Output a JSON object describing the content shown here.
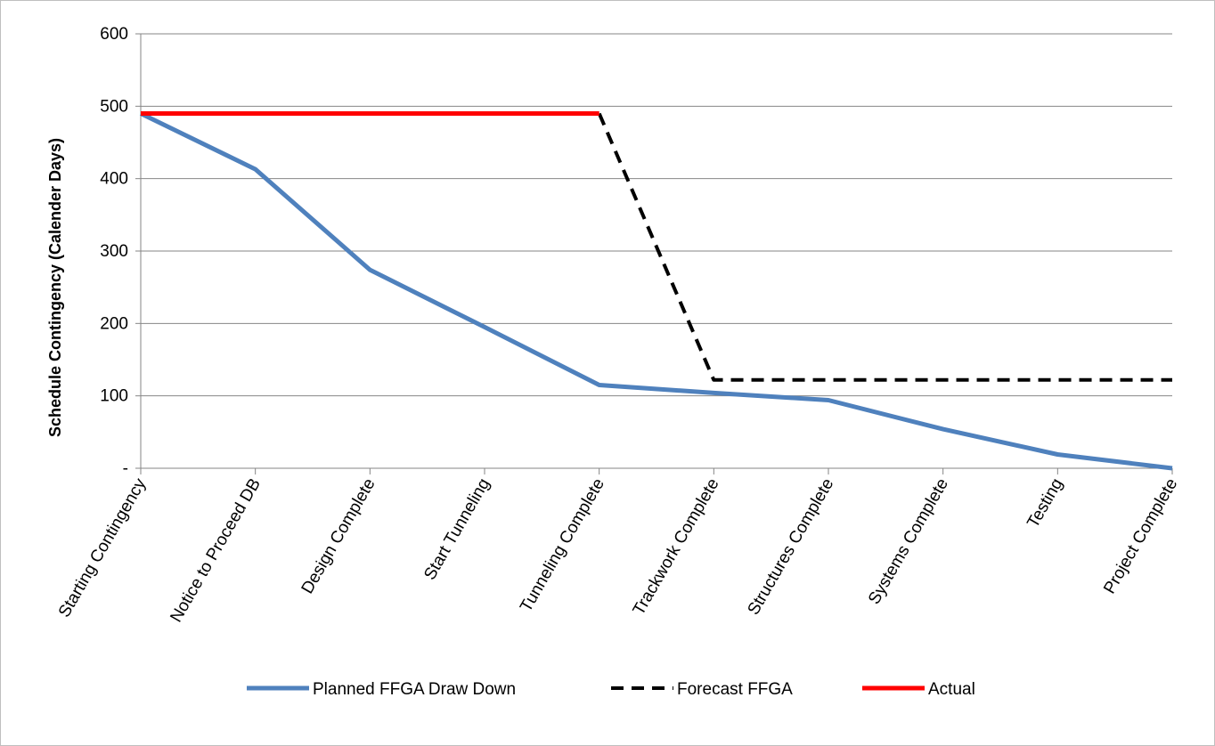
{
  "chart_data": {
    "type": "line",
    "title": "",
    "xlabel": "",
    "ylabel": "Schedule Contingency (Calender Days)",
    "ylim": [
      0,
      600
    ],
    "y_ticks": [
      {
        "value": 0,
        "label": "-"
      },
      {
        "value": 100,
        "label": "100"
      },
      {
        "value": 200,
        "label": "200"
      },
      {
        "value": 300,
        "label": "300"
      },
      {
        "value": 400,
        "label": "400"
      },
      {
        "value": 500,
        "label": "500"
      },
      {
        "value": 600,
        "label": "600"
      }
    ],
    "grid": "horizontal",
    "legend_position": "bottom",
    "categories": [
      "Starting Contingency",
      "Notice to Proceed DB",
      "Design Complete",
      "Start Tunneling",
      "Tunneling Complete",
      "Trackwork Complete",
      "Structures Complete",
      "Systems Complete",
      "Testing",
      "Project Complete"
    ],
    "series": [
      {
        "name": "Planned FFGA Draw Down",
        "color": "#4f81bd",
        "style": "solid",
        "values": [
          490,
          413,
          274,
          195,
          115,
          104,
          94,
          54,
          19,
          0
        ]
      },
      {
        "name": "Forecast FFGA",
        "color": "#000000",
        "style": "dashed",
        "values": [
          null,
          null,
          null,
          null,
          490,
          122,
          122,
          122,
          122,
          122
        ]
      },
      {
        "name": "Actual",
        "color": "#ff0000",
        "style": "solid",
        "values": [
          490,
          490,
          490,
          490,
          490,
          null,
          null,
          null,
          null,
          null
        ]
      }
    ]
  }
}
